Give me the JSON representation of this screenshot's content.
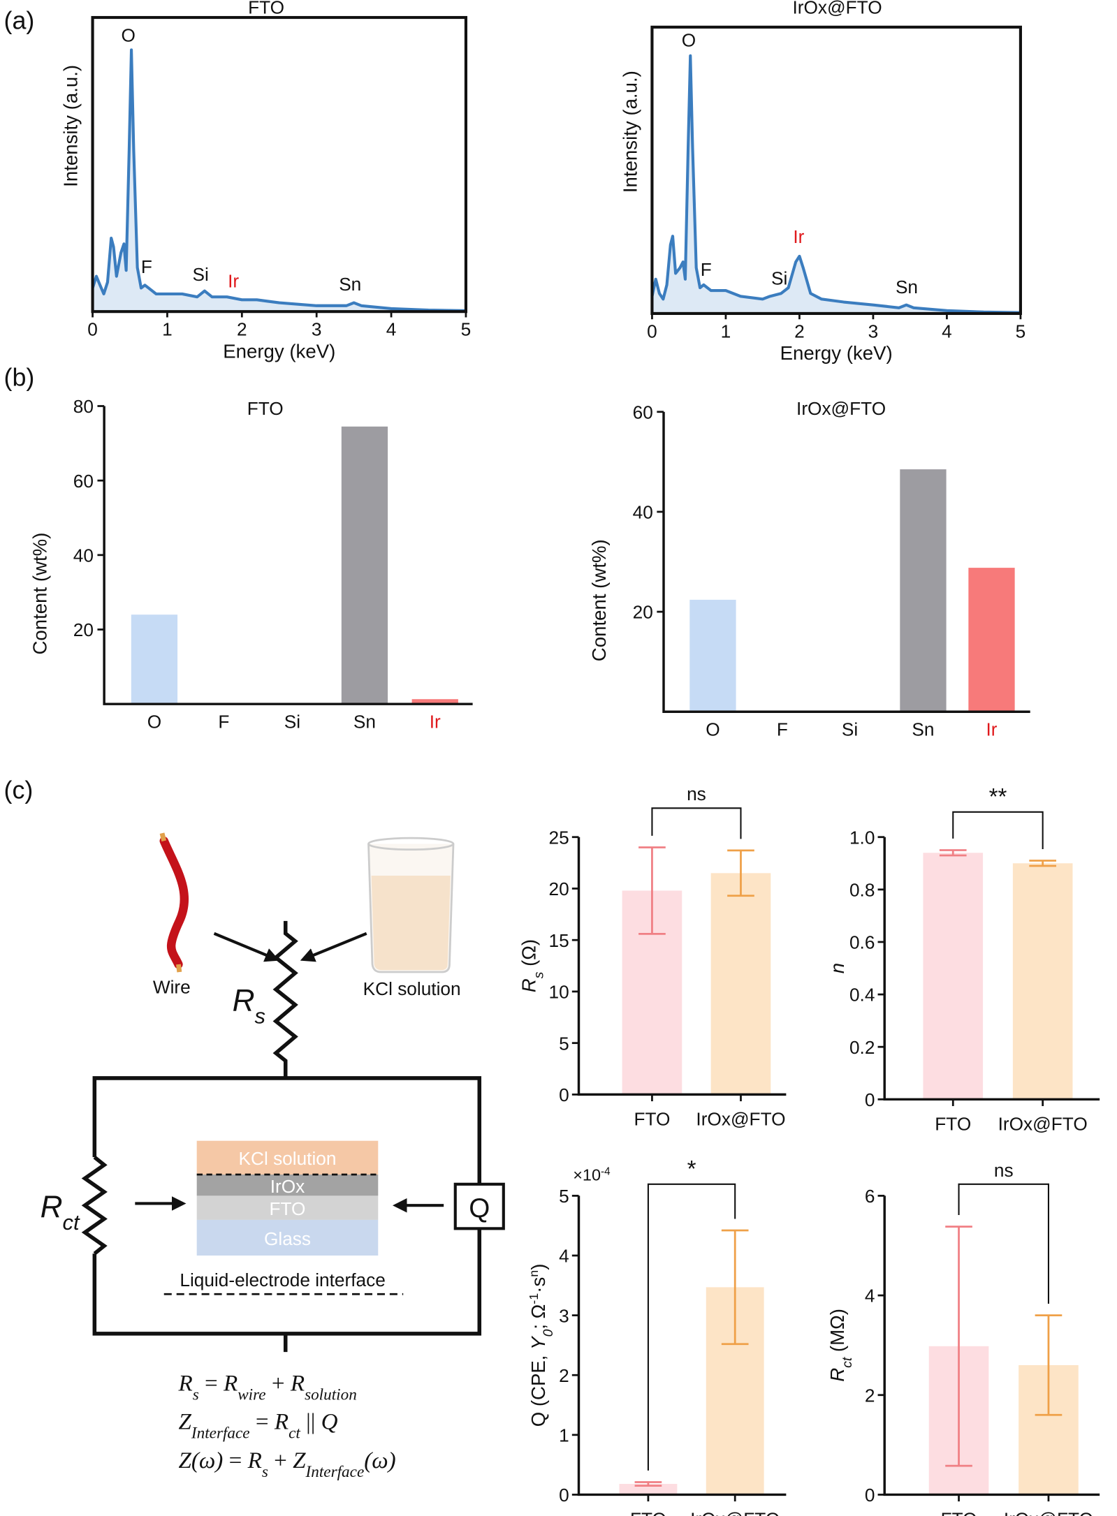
{
  "panel_labels": [
    "(a)",
    "(b)",
    "(c)"
  ],
  "chart_data": [
    {
      "type": "spectrum",
      "title": "FTO",
      "xlabel": "Energy (keV)",
      "ylabel": "Intensity (a.u.)",
      "x": [
        0,
        0.05,
        0.1,
        0.15,
        0.2,
        0.25,
        0.28,
        0.32,
        0.38,
        0.42,
        0.45,
        0.49,
        0.52,
        0.55,
        0.6,
        0.65,
        0.7,
        0.75,
        0.85,
        1.0,
        1.2,
        1.4,
        1.5,
        1.6,
        1.8,
        2.0,
        2.2,
        2.5,
        3.0,
        3.4,
        3.5,
        3.6,
        4.0,
        4.5,
        5.0
      ],
      "series": [
        {
          "color": "#3b7dbf",
          "values": [
            8,
            12,
            9,
            6,
            10,
            25,
            22,
            12,
            20,
            23,
            14,
            55,
            89,
            55,
            15,
            8,
            9,
            8,
            6,
            6,
            6,
            5,
            7,
            5,
            5,
            4,
            4,
            3,
            2,
            2,
            3,
            2,
            1,
            0.5,
            0.3
          ]
        }
      ],
      "fill": "#dde9f5",
      "xlim": [
        0,
        5
      ],
      "xticks": [
        0,
        1,
        2,
        3,
        4,
        5
      ],
      "ylim": [
        0,
        100
      ],
      "annotations": [
        {
          "text": "O",
          "color": "#111111"
        },
        {
          "text": "F",
          "color": "#111111"
        },
        {
          "text": "Si",
          "color": "#111111"
        },
        {
          "text": "Ir",
          "color": "#e0191c"
        },
        {
          "text": "Sn",
          "color": "#111111"
        }
      ]
    },
    {
      "type": "spectrum",
      "title": "IrOx@FTO",
      "xlabel": "Energy (keV)",
      "ylabel": "Intensity (a.u.)",
      "x": [
        0,
        0.05,
        0.1,
        0.15,
        0.2,
        0.25,
        0.28,
        0.32,
        0.38,
        0.42,
        0.45,
        0.49,
        0.52,
        0.55,
        0.6,
        0.65,
        0.7,
        0.8,
        1.0,
        1.2,
        1.5,
        1.6,
        1.75,
        1.85,
        1.95,
        2.0,
        2.05,
        2.15,
        2.3,
        2.6,
        3.0,
        3.35,
        3.45,
        3.55,
        4.0,
        4.5,
        5.0
      ],
      "series": [
        {
          "color": "#3b7dbf",
          "values": [
            6,
            12,
            7,
            5,
            10,
            24,
            27,
            14,
            16,
            18,
            12,
            58,
            90,
            58,
            16,
            9,
            10,
            8,
            8,
            6,
            5,
            6,
            7,
            9,
            18,
            20,
            16,
            7,
            5,
            4,
            3,
            2,
            3,
            2,
            1,
            0.5,
            0.3
          ]
        }
      ],
      "fill": "#dde9f5",
      "xlim": [
        0,
        5
      ],
      "xticks": [
        0,
        1,
        2,
        3,
        4,
        5
      ],
      "ylim": [
        0,
        100
      ],
      "annotations": [
        {
          "text": "O",
          "color": "#111111"
        },
        {
          "text": "F",
          "color": "#111111"
        },
        {
          "text": "Si",
          "color": "#111111"
        },
        {
          "text": "Ir",
          "color": "#e0191c"
        },
        {
          "text": "Sn",
          "color": "#111111"
        }
      ]
    },
    {
      "type": "bar",
      "title": "FTO",
      "ylabel": "Content (wt%)",
      "categories": [
        "O",
        "F",
        "Si",
        "Sn",
        "Ir"
      ],
      "values": [
        24,
        0,
        0,
        74.5,
        1.3
      ],
      "colors": [
        "#c6dbf5",
        "#c6dbf5",
        "#c6dbf5",
        "#9d9ca1",
        "#f77a7a"
      ],
      "category_colors": [
        "#111111",
        "#111111",
        "#111111",
        "#111111",
        "#e0191c"
      ],
      "ylim": [
        0,
        80
      ],
      "yticks": [
        20,
        40,
        60,
        80
      ]
    },
    {
      "type": "bar",
      "title": "IrOx@FTO",
      "ylabel": "Content (wt%)",
      "categories": [
        "O",
        "F",
        "Si",
        "Sn",
        "Ir"
      ],
      "values": [
        22.4,
        0,
        0,
        48.5,
        28.8
      ],
      "colors": [
        "#c6dbf5",
        "#c6dbf5",
        "#c6dbf5",
        "#9d9ca1",
        "#f77a7a"
      ],
      "category_colors": [
        "#111111",
        "#111111",
        "#111111",
        "#111111",
        "#e0191c"
      ],
      "ylim": [
        0,
        60
      ],
      "yticks": [
        20,
        40,
        60
      ]
    },
    {
      "type": "bar_error",
      "ylabel_parts": [
        {
          "text": "R",
          "style": "i"
        },
        {
          "text": "s",
          "style": "sub"
        },
        {
          "text": " (Ω)"
        }
      ],
      "categories": [
        "FTO",
        "IrOx@FTO"
      ],
      "values": [
        19.8,
        21.5
      ],
      "errors": [
        4.2,
        2.2
      ],
      "colors": [
        "#fddde1",
        "#fde4c6"
      ],
      "error_colors": [
        "#f07f84",
        "#efa048"
      ],
      "ylim": [
        0,
        25
      ],
      "yticks": [
        0,
        5,
        10,
        15,
        20,
        25
      ],
      "significance": "ns"
    },
    {
      "type": "bar_error",
      "ylabel_parts": [
        {
          "text": "n",
          "style": "i"
        }
      ],
      "categories": [
        "FTO",
        "IrOx@FTO"
      ],
      "values": [
        0.94,
        0.9
      ],
      "errors": [
        0.01,
        0.01
      ],
      "colors": [
        "#fddde1",
        "#fde4c6"
      ],
      "error_colors": [
        "#f07f84",
        "#efa048"
      ],
      "ylim": [
        0,
        1
      ],
      "yticks": [
        0,
        0.2,
        0.4,
        0.6,
        0.8,
        {
          "value": 1,
          "label": "1.0"
        }
      ],
      "significance": "**"
    },
    {
      "type": "bar_error",
      "ylabel_parts": [
        {
          "text": "Q (CPE,  "
        },
        {
          "text": "Y",
          "style": "i"
        },
        {
          "text": "0",
          "style": "sub"
        },
        {
          "text": "; Ω"
        },
        {
          "text": "-1",
          "style": "sup"
        },
        {
          "text": "·s"
        },
        {
          "text": "n",
          "style": "sup"
        },
        {
          "text": ")"
        }
      ],
      "multiplier_parts": [
        {
          "text": "×10"
        },
        {
          "text": "-4",
          "style": "sup"
        }
      ],
      "categories": [
        "FTO",
        "IrOx@FTO"
      ],
      "values": [
        0.18,
        3.47
      ],
      "errors": [
        0.03,
        0.95
      ],
      "colors": [
        "#fddde1",
        "#fde4c6"
      ],
      "error_colors": [
        "#f07f84",
        "#efa048"
      ],
      "ylim": [
        0,
        5
      ],
      "yticks": [
        0,
        1,
        2,
        3,
        4,
        5
      ],
      "significance": "*"
    },
    {
      "type": "bar_error",
      "ylabel_parts": [
        {
          "text": "R",
          "style": "i"
        },
        {
          "text": "ct",
          "style": "sub"
        },
        {
          "text": " (MΩ)"
        }
      ],
      "categories": [
        "FTO",
        "IrOx@FTO"
      ],
      "values": [
        2.98,
        2.6
      ],
      "errors": [
        2.4,
        1.0
      ],
      "colors": [
        "#fddde1",
        "#fde4c6"
      ],
      "error_colors": [
        "#f07f84",
        "#efa048"
      ],
      "ylim": [
        0,
        6
      ],
      "yticks": [
        0,
        2,
        4,
        6
      ],
      "significance": "ns"
    }
  ],
  "diagram": {
    "wire": "Wire",
    "kcl": "KCl solution",
    "rs": [
      {
        "text": "R",
        "style": "i"
      },
      {
        "text": "s",
        "style": "sub"
      }
    ],
    "rct": [
      {
        "text": "R",
        "style": "i"
      },
      {
        "text": "ct",
        "style": "sub"
      }
    ],
    "q": "Q",
    "layers": [
      "KCl solution",
      "IrOx",
      "FTO",
      "Glass"
    ],
    "interface": "Liquid-electrode interface",
    "equations": [
      [
        {
          "text": "R",
          "style": "i"
        },
        {
          "text": "s",
          "style": "sub"
        },
        {
          "text": " = "
        },
        {
          "text": "R",
          "style": "i"
        },
        {
          "text": "wire",
          "style": "sub"
        },
        {
          "text": " + "
        },
        {
          "text": "R",
          "style": "i"
        },
        {
          "text": "solution",
          "style": "sub"
        }
      ],
      [
        {
          "text": "Z",
          "style": "i"
        },
        {
          "text": "Interface",
          "style": "sub"
        },
        {
          "text": " = "
        },
        {
          "text": "R",
          "style": "i"
        },
        {
          "text": "ct",
          "style": "sub"
        },
        {
          "text": " || "
        },
        {
          "text": "Q",
          "style": "i"
        }
      ],
      [
        {
          "text": "Z",
          "style": "i"
        },
        {
          "text": "(ω)",
          "style": "i"
        },
        {
          "text": " = "
        },
        {
          "text": "R",
          "style": "i"
        },
        {
          "text": "s",
          "style": "sub"
        },
        {
          "text": " + "
        },
        {
          "text": "Z",
          "style": "i"
        },
        {
          "text": "Interface",
          "style": "sub"
        },
        {
          "text": "(ω)",
          "style": "i"
        }
      ]
    ]
  }
}
